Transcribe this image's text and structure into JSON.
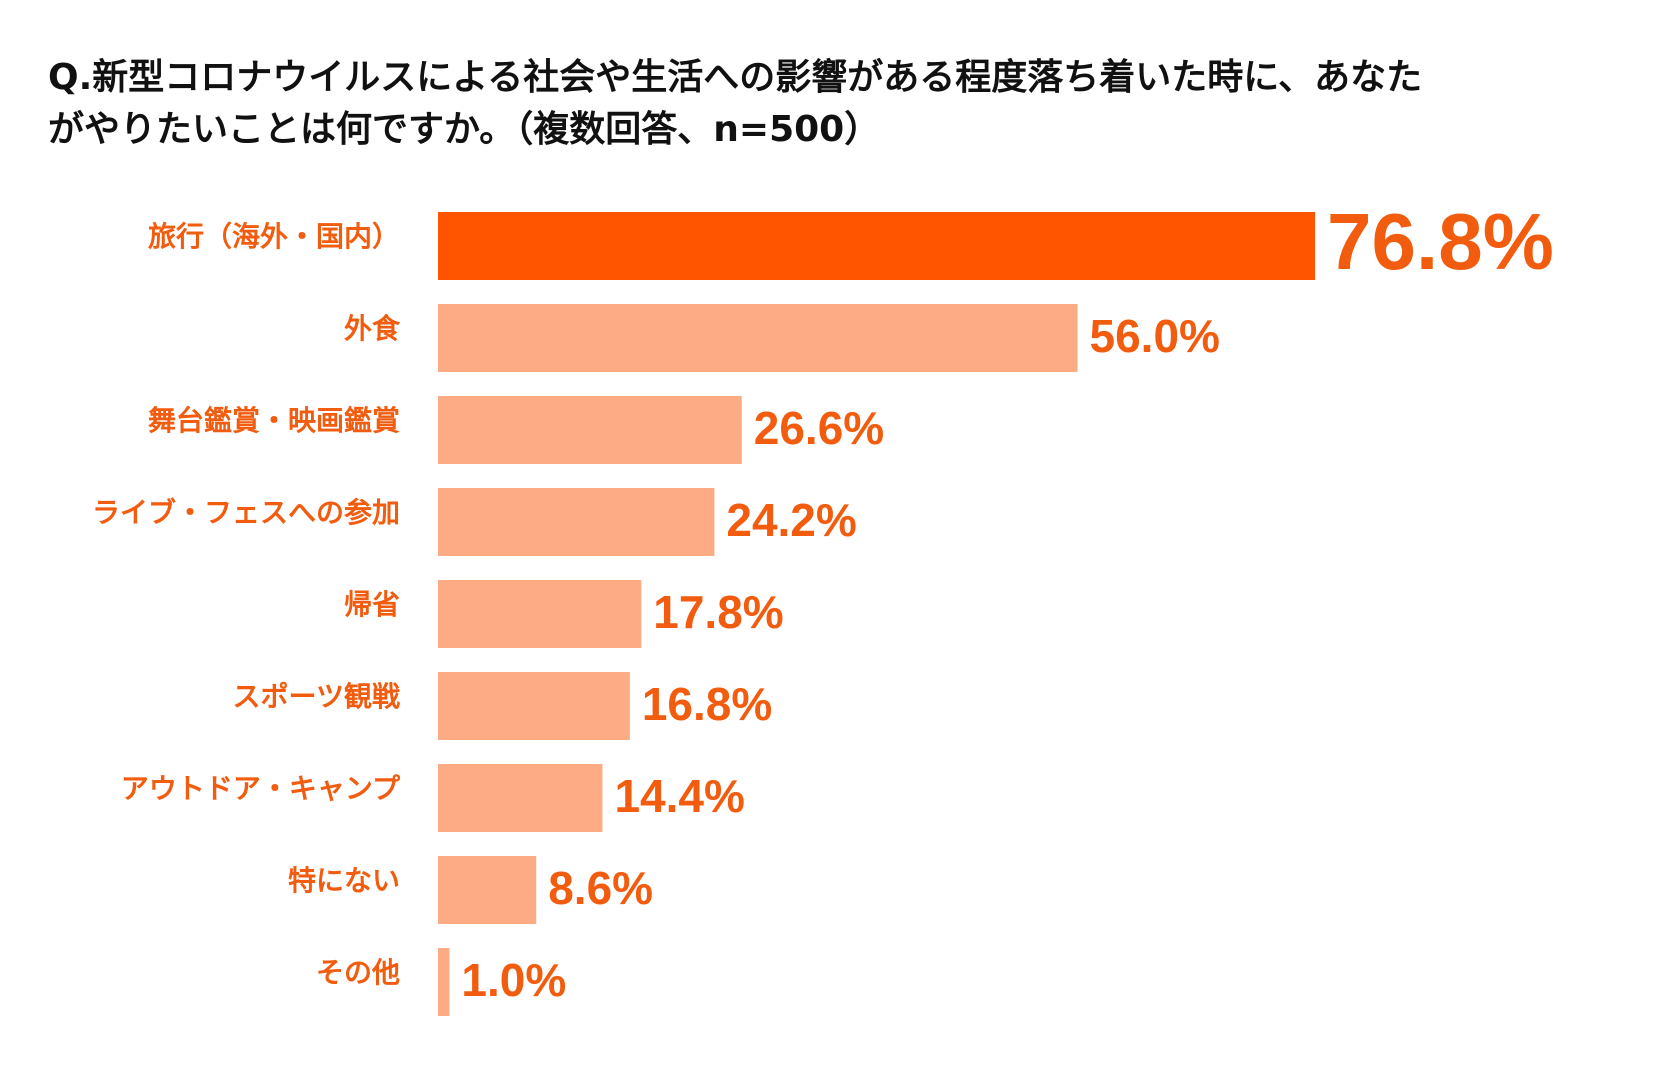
{
  "title": {
    "line1": "Q.新型コロナウイルスによる社会や生活への影響がある程度落ち着いた時に、あなた",
    "line2": "がやりたいことは何ですか。（複数回答、n=500）"
  },
  "colors": {
    "highlight_bar": "#ff5500",
    "bar": "#fdab84",
    "label": "#f25c0f",
    "title": "#111111"
  },
  "chart_data": {
    "type": "bar",
    "orientation": "horizontal",
    "title": "Q.新型コロナウイルスによる社会や生活への影響がある程度落ち着いた時に、あなたがやりたいことは何ですか。（複数回答、n=500）",
    "categories": [
      "旅行（海外・国内）",
      "外食",
      "舞台鑑賞・映画鑑賞",
      "ライブ・フェスへの参加",
      "帰省",
      "スポーツ観戦",
      "アウトドア・キャンプ",
      "特にない",
      "その他"
    ],
    "values": [
      76.8,
      56.0,
      26.6,
      24.2,
      17.8,
      16.8,
      14.4,
      8.6,
      1.0
    ],
    "value_labels": [
      "76.8%",
      "56.0%",
      "26.6%",
      "24.2%",
      "17.8%",
      "16.8%",
      "14.4%",
      "8.6%",
      "1.0%"
    ],
    "unit": "%",
    "highlight_index": 0,
    "xlim": [
      0,
      100
    ],
    "grid": false,
    "legend": "none"
  }
}
